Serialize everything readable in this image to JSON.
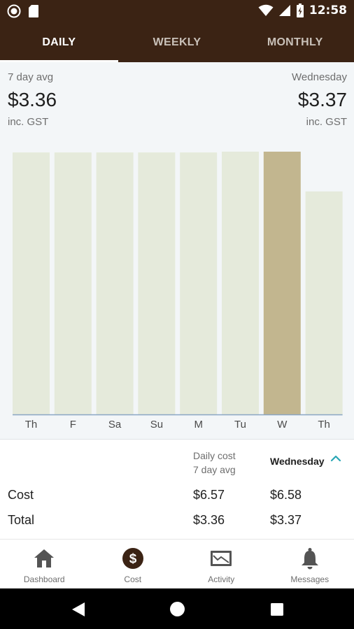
{
  "status_bar": {
    "time": "12:58",
    "left_icons": [
      "record-icon",
      "sd-card-icon"
    ],
    "right_icons": [
      "wifi-icon",
      "signal-icon",
      "battery-icon"
    ]
  },
  "tabs": [
    {
      "label": "DAILY",
      "active": true
    },
    {
      "label": "WEEKLY",
      "active": false
    },
    {
      "label": "MONTHLY",
      "active": false
    }
  ],
  "summary": {
    "left": {
      "label": "7 day avg",
      "value": "$3.36",
      "sub": "inc. GST"
    },
    "right": {
      "label": "Wednesday",
      "value": "$3.37",
      "sub": "inc. GST"
    }
  },
  "chart_data": {
    "type": "bar",
    "categories": [
      "Th",
      "F",
      "Sa",
      "Su",
      "M",
      "Tu",
      "W",
      "Th"
    ],
    "values": [
      3.36,
      3.36,
      3.36,
      3.36,
      3.36,
      3.37,
      3.37,
      2.86
    ],
    "selected_index": 6,
    "ylim": [
      0,
      3.37
    ],
    "grid": false,
    "colors": {
      "bar": "#e5eadb",
      "selected": "#c2b68f",
      "baseline": "#8aa6c4"
    }
  },
  "detail": {
    "col1_header_line1": "Daily cost",
    "col1_header_line2": "7 day avg",
    "col2_header": "Wednesday",
    "rows": [
      {
        "label": "Cost",
        "avg": "$6.57",
        "day": "$6.58"
      },
      {
        "label": "Total",
        "avg": "$3.36",
        "day": "$3.37"
      }
    ],
    "accent_color": "#2aa7b5"
  },
  "bottom_nav": [
    {
      "label": "Dashboard",
      "icon": "home-icon"
    },
    {
      "label": "Cost",
      "icon": "dollar-icon"
    },
    {
      "label": "Activity",
      "icon": "activity-icon"
    },
    {
      "label": "Messages",
      "icon": "bell-icon"
    }
  ],
  "system_nav": [
    "back-icon",
    "home-circle-icon",
    "recents-icon"
  ],
  "colors": {
    "header_bg": "#3b2314",
    "summary_bg": "#f3f6f8"
  }
}
